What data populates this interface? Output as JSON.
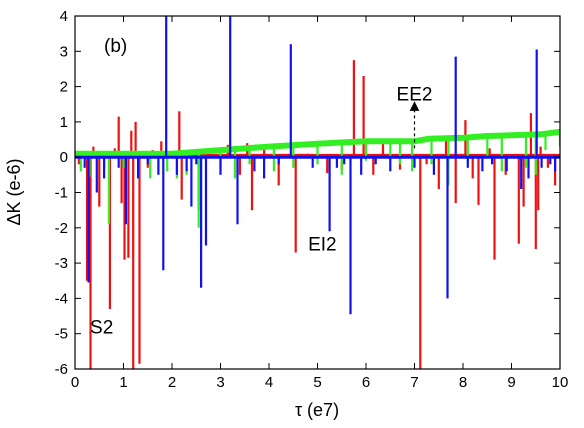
{
  "chart_data": {
    "type": "line",
    "panel_label": "(b)",
    "xlabel": "τ (e7)",
    "ylabel": "ΔK (e-6)",
    "xlim": [
      0,
      10
    ],
    "ylim": [
      -6,
      4
    ],
    "x_ticks": [
      "0",
      "1",
      "2",
      "3",
      "4",
      "5",
      "6",
      "7",
      "8",
      "9",
      "10"
    ],
    "y_ticks": [
      "-6",
      "-5",
      "-4",
      "-3",
      "-2",
      "-1",
      "0",
      "1",
      "2",
      "3",
      "4"
    ],
    "grid": false,
    "legend": "none",
    "annotations": [
      {
        "text": "EE2",
        "x": 7.0,
        "y": 1.8,
        "arrow_from": [
          7.0,
          0.25
        ],
        "arrow_to": [
          7.0,
          1.45
        ]
      },
      {
        "text": "EI2",
        "x": 5.1,
        "y": -2.45
      },
      {
        "text": "S2",
        "x": 0.55,
        "y": -4.8
      }
    ],
    "series": [
      {
        "color": "#ee1111",
        "baseline": [
          [
            0,
            0.05
          ],
          [
            10,
            0.05
          ]
        ],
        "spikes": [
          [
            0.08,
            -0.2
          ],
          [
            0.25,
            -3.5
          ],
          [
            0.32,
            -6.0
          ],
          [
            0.38,
            0.3
          ],
          [
            0.5,
            -1.4
          ],
          [
            0.6,
            -0.3
          ],
          [
            0.72,
            -4.3
          ],
          [
            0.82,
            0.25
          ],
          [
            0.9,
            1.15
          ],
          [
            0.96,
            -1.3
          ],
          [
            1.02,
            -2.9
          ],
          [
            1.1,
            -2.85
          ],
          [
            1.16,
            0.75
          ],
          [
            1.2,
            -6.0
          ],
          [
            1.25,
            1.0
          ],
          [
            1.33,
            -5.85
          ],
          [
            1.5,
            -0.3
          ],
          [
            1.6,
            0.2
          ],
          [
            1.78,
            0.45
          ],
          [
            2.15,
            1.3
          ],
          [
            2.2,
            -1.2
          ],
          [
            2.55,
            -1.5
          ],
          [
            3.15,
            0.35
          ],
          [
            3.4,
            -0.5
          ],
          [
            3.55,
            0.4
          ],
          [
            3.65,
            -1.5
          ],
          [
            3.9,
            0.3
          ],
          [
            4.2,
            -0.8
          ],
          [
            4.55,
            -2.7
          ],
          [
            4.8,
            0.1
          ],
          [
            5.2,
            -0.45
          ],
          [
            5.5,
            -0.35
          ],
          [
            5.75,
            2.75
          ],
          [
            5.95,
            2.3
          ],
          [
            6.15,
            -0.5
          ],
          [
            6.35,
            0.4
          ],
          [
            6.7,
            -0.35
          ],
          [
            7.12,
            -6.0
          ],
          [
            7.25,
            -0.2
          ],
          [
            7.5,
            -0.9
          ],
          [
            7.65,
            0.6
          ],
          [
            7.85,
            -1.3
          ],
          [
            8.05,
            1.05
          ],
          [
            8.2,
            -0.6
          ],
          [
            8.32,
            -1.35
          ],
          [
            8.55,
            0.25
          ],
          [
            8.65,
            -2.9
          ],
          [
            8.88,
            -0.5
          ],
          [
            9.15,
            -2.45
          ],
          [
            9.25,
            -1.4
          ],
          [
            9.4,
            1.25
          ],
          [
            9.5,
            -2.6
          ],
          [
            9.55,
            -1.5
          ],
          [
            9.6,
            0.3
          ],
          [
            9.75,
            -0.3
          ],
          [
            9.9,
            -0.8
          ]
        ]
      },
      {
        "color": "#33ee22",
        "baseline": [
          [
            0,
            0.1
          ],
          [
            2,
            0.1
          ],
          [
            3,
            0.2
          ],
          [
            4,
            0.3
          ],
          [
            5,
            0.38
          ],
          [
            6,
            0.45
          ],
          [
            7,
            0.45
          ],
          [
            7.3,
            0.52
          ],
          [
            8,
            0.55
          ],
          [
            8.5,
            0.6
          ],
          [
            9,
            0.62
          ],
          [
            9.6,
            0.65
          ],
          [
            10,
            0.72
          ]
        ],
        "spikes": [
          [
            0.12,
            -0.4
          ],
          [
            0.3,
            -0.55
          ],
          [
            0.7,
            -1.9
          ],
          [
            1.0,
            -0.3
          ],
          [
            1.3,
            -0.6
          ],
          [
            1.55,
            -0.6
          ],
          [
            1.9,
            -0.4
          ],
          [
            2.1,
            -0.6
          ],
          [
            2.3,
            -0.5
          ],
          [
            2.55,
            -2.0
          ],
          [
            3.0,
            -0.3
          ],
          [
            3.3,
            -0.6
          ],
          [
            3.6,
            -0.2
          ],
          [
            4.1,
            -0.4
          ],
          [
            4.5,
            -0.3
          ],
          [
            5.0,
            -0.2
          ],
          [
            5.5,
            -0.5
          ],
          [
            6.0,
            -0.1
          ],
          [
            6.5,
            0.0
          ],
          [
            6.7,
            -0.2
          ],
          [
            6.95,
            -0.4
          ],
          [
            7.35,
            -0.2
          ],
          [
            7.7,
            -0.8
          ],
          [
            8.1,
            -0.2
          ],
          [
            8.5,
            0.0
          ],
          [
            8.8,
            -0.4
          ],
          [
            9.3,
            -0.3
          ],
          [
            9.5,
            -0.5
          ],
          [
            9.7,
            0.2
          ],
          [
            10.0,
            0.3
          ]
        ]
      },
      {
        "color": "#1111ee",
        "baseline": [
          [
            0,
            0.0
          ],
          [
            10,
            0.0
          ]
        ],
        "spikes": [
          [
            0.2,
            -0.3
          ],
          [
            0.28,
            -3.55
          ],
          [
            0.45,
            -1.0
          ],
          [
            0.6,
            -0.6
          ],
          [
            0.9,
            -0.3
          ],
          [
            1.05,
            -1.9
          ],
          [
            1.3,
            -0.6
          ],
          [
            1.5,
            -0.2
          ],
          [
            1.72,
            -0.5
          ],
          [
            1.82,
            -3.2
          ],
          [
            1.88,
            4.0
          ],
          [
            2.1,
            -0.5
          ],
          [
            2.3,
            -0.4
          ],
          [
            2.4,
            -1.4
          ],
          [
            2.5,
            -0.2
          ],
          [
            2.6,
            -3.7
          ],
          [
            2.7,
            -2.5
          ],
          [
            3.0,
            -0.5
          ],
          [
            3.2,
            4.0
          ],
          [
            3.35,
            -1.9
          ],
          [
            3.7,
            -0.4
          ],
          [
            3.9,
            -0.6
          ],
          [
            4.2,
            -0.2
          ],
          [
            4.45,
            3.2
          ],
          [
            4.9,
            -0.3
          ],
          [
            5.25,
            -2.1
          ],
          [
            5.4,
            -0.3
          ],
          [
            5.55,
            -0.2
          ],
          [
            5.68,
            -4.45
          ],
          [
            5.9,
            -0.5
          ],
          [
            6.2,
            -0.2
          ],
          [
            6.5,
            -0.4
          ],
          [
            7.0,
            -0.3
          ],
          [
            7.4,
            -0.5
          ],
          [
            7.68,
            -4.0
          ],
          [
            7.85,
            2.85
          ],
          [
            8.1,
            -0.3
          ],
          [
            8.4,
            -0.4
          ],
          [
            8.6,
            -0.2
          ],
          [
            8.9,
            -0.4
          ],
          [
            9.2,
            -0.9
          ],
          [
            9.35,
            -0.6
          ],
          [
            9.52,
            3.05
          ],
          [
            9.62,
            -0.3
          ],
          [
            9.8,
            -0.2
          ],
          [
            9.9,
            -0.4
          ]
        ]
      }
    ]
  }
}
